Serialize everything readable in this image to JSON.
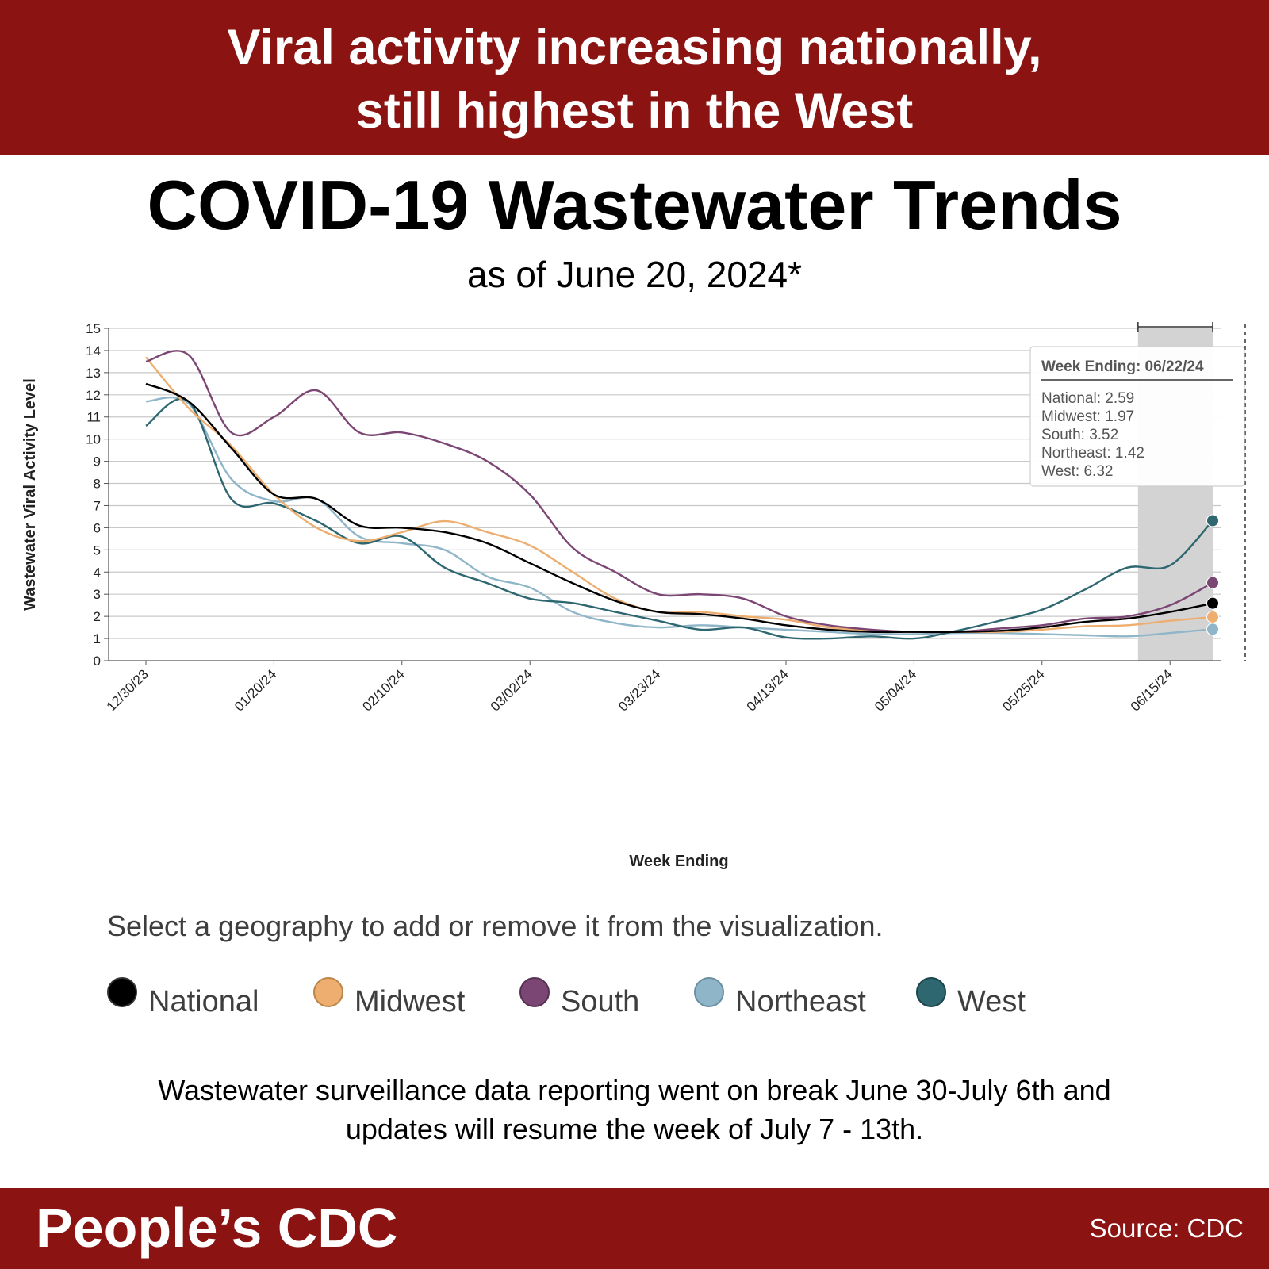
{
  "banner": {
    "line1": "Viral activity increasing nationally,",
    "line2": "still highest in the West"
  },
  "title": "COVID-19 Wastewater Trends",
  "subtitle": "as of June 20, 2024*",
  "legend_instruction": "Select a geography to add or remove it from the visualization.",
  "legend": [
    {
      "label": "National",
      "color": "#000000"
    },
    {
      "label": "Midwest",
      "color": "#edae6f"
    },
    {
      "label": "South",
      "color": "#7c4674"
    },
    {
      "label": "Northeast",
      "color": "#8fb5c8"
    },
    {
      "label": "West",
      "color": "#2e6770"
    }
  ],
  "note": {
    "line1": "Wastewater surveillance data reporting went on break June 30-July 6th and",
    "line2": "updates will resume the week of July 7 - 13th."
  },
  "footer": {
    "brand": "People’s CDC",
    "source": "Source: CDC"
  },
  "chart_data": {
    "type": "line",
    "xlabel": "Week Ending",
    "ylabel": "Wastewater Viral Activity Level",
    "ylim": [
      0,
      15
    ],
    "y_ticks": [
      0,
      1,
      2,
      3,
      4,
      5,
      6,
      7,
      8,
      9,
      10,
      11,
      12,
      13,
      14,
      15
    ],
    "grid": true,
    "x": [
      "12/30/23",
      "01/06/24",
      "01/13/24",
      "01/20/24",
      "01/27/24",
      "02/03/24",
      "02/10/24",
      "02/17/24",
      "02/24/24",
      "03/02/24",
      "03/09/24",
      "03/16/24",
      "03/23/24",
      "03/30/24",
      "04/06/24",
      "04/13/24",
      "04/20/24",
      "04/27/24",
      "05/04/24",
      "05/11/24",
      "05/18/24",
      "05/25/24",
      "06/01/24",
      "06/08/24",
      "06/15/24",
      "06/22/24"
    ],
    "x_tick_labels": [
      "12/30/23",
      "01/20/24",
      "02/10/24",
      "03/02/24",
      "03/23/24",
      "04/13/24",
      "05/04/24",
      "05/25/24",
      "06/15/24"
    ],
    "highlight": {
      "from": "06/08/24",
      "to": "06/22/24"
    },
    "series": [
      {
        "name": "National",
        "color": "#000000",
        "values": [
          12.5,
          11.7,
          9.6,
          7.5,
          7.3,
          6.1,
          6.0,
          5.8,
          5.3,
          4.4,
          3.5,
          2.7,
          2.2,
          2.1,
          1.9,
          1.6,
          1.4,
          1.3,
          1.3,
          1.3,
          1.35,
          1.5,
          1.75,
          1.9,
          2.2,
          2.59
        ]
      },
      {
        "name": "Midwest",
        "color": "#edae6f",
        "values": [
          13.7,
          11.4,
          9.7,
          7.5,
          6.0,
          5.4,
          5.8,
          6.3,
          5.8,
          5.2,
          4.0,
          2.8,
          2.2,
          2.2,
          2.0,
          1.85,
          1.5,
          1.35,
          1.3,
          1.3,
          1.3,
          1.4,
          1.55,
          1.6,
          1.8,
          1.97
        ]
      },
      {
        "name": "South",
        "color": "#7c4674",
        "values": [
          13.5,
          13.8,
          10.3,
          11.0,
          12.2,
          10.3,
          10.3,
          9.8,
          9.0,
          7.5,
          5.1,
          4.0,
          3.0,
          3.0,
          2.8,
          2.0,
          1.6,
          1.4,
          1.3,
          1.3,
          1.45,
          1.6,
          1.9,
          2.0,
          2.5,
          3.52
        ]
      },
      {
        "name": "Northeast",
        "color": "#8fb5c8",
        "values": [
          11.7,
          11.6,
          8.2,
          7.2,
          7.3,
          5.6,
          5.3,
          5.0,
          3.8,
          3.3,
          2.2,
          1.7,
          1.5,
          1.6,
          1.5,
          1.4,
          1.3,
          1.2,
          1.2,
          1.25,
          1.25,
          1.2,
          1.15,
          1.1,
          1.25,
          1.42
        ]
      },
      {
        "name": "West",
        "color": "#2e6770",
        "values": [
          10.6,
          11.7,
          7.3,
          7.1,
          6.3,
          5.3,
          5.6,
          4.2,
          3.5,
          2.8,
          2.6,
          2.2,
          1.8,
          1.4,
          1.5,
          1.05,
          1.0,
          1.1,
          1.0,
          1.35,
          1.8,
          2.3,
          3.2,
          4.2,
          4.3,
          6.32
        ]
      }
    ],
    "tooltip": {
      "title": "Week Ending: 06/22/24",
      "lines": [
        "National: 2.59",
        "Midwest: 1.97",
        "South: 3.52",
        "Northeast: 1.42",
        "West: 6.32"
      ]
    }
  }
}
